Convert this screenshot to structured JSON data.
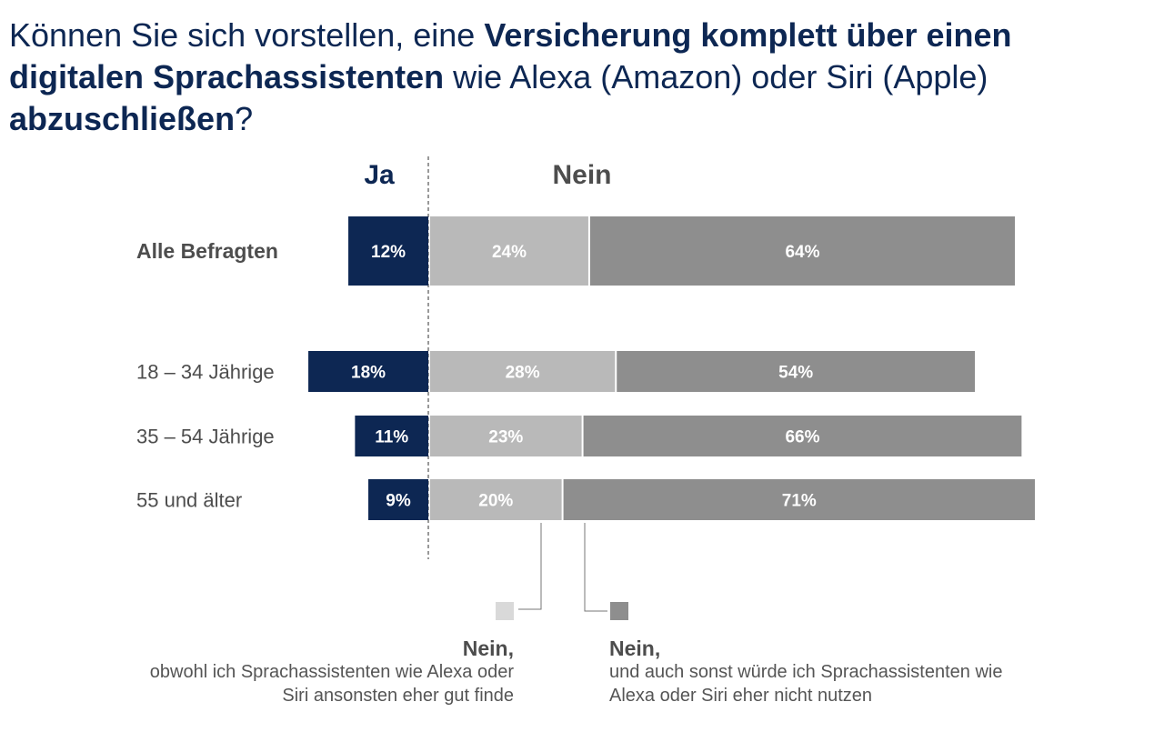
{
  "title": {
    "part1": "Können Sie sich vorstellen, eine ",
    "part2": "Versicherung komplett über einen digitalen Sprachassistenten",
    "part3": " wie Alexa (Amazon) oder Siri (Apple) ",
    "part4": "abzuschließen",
    "part5": "?"
  },
  "legend": {
    "left_head": "Nein,",
    "left_text": "obwohl ich Sprachassistenten wie Alexa oder Siri ansonsten eher gut finde",
    "right_head": "Nein,",
    "right_text": "und auch sonst würde ich Sprachassistenten wie Alexa oder Siri eher nicht nutzen"
  },
  "colors": {
    "ja": "#0d2753",
    "nein_gut": "#b9b9b9",
    "nein_nicht": "#8e8e8e",
    "label": "#4d4d4d",
    "swatch_gut": "#d9d9d9",
    "swatch_nicht": "#8e8e8e"
  },
  "chart_data": {
    "type": "bar",
    "orientation": "horizontal-diverging",
    "column_headers": [
      "Ja",
      "Nein"
    ],
    "categories": [
      "Alle Befragten",
      "18 – 34 Jährige",
      "35 – 54 Jährige",
      "55 und älter"
    ],
    "series": [
      {
        "key": "ja",
        "values": [
          12,
          18,
          11,
          9
        ],
        "labels": [
          "12%",
          "18%",
          "11%",
          "9%"
        ]
      },
      {
        "key": "nein_gut",
        "values": [
          24,
          28,
          23,
          20
        ],
        "labels": [
          "24%",
          "28%",
          "23%",
          "20%"
        ]
      },
      {
        "key": "nein_nicht",
        "values": [
          64,
          54,
          66,
          71
        ],
        "labels": [
          "64%",
          "54%",
          "66%",
          "71%"
        ]
      }
    ],
    "unit": "%"
  }
}
